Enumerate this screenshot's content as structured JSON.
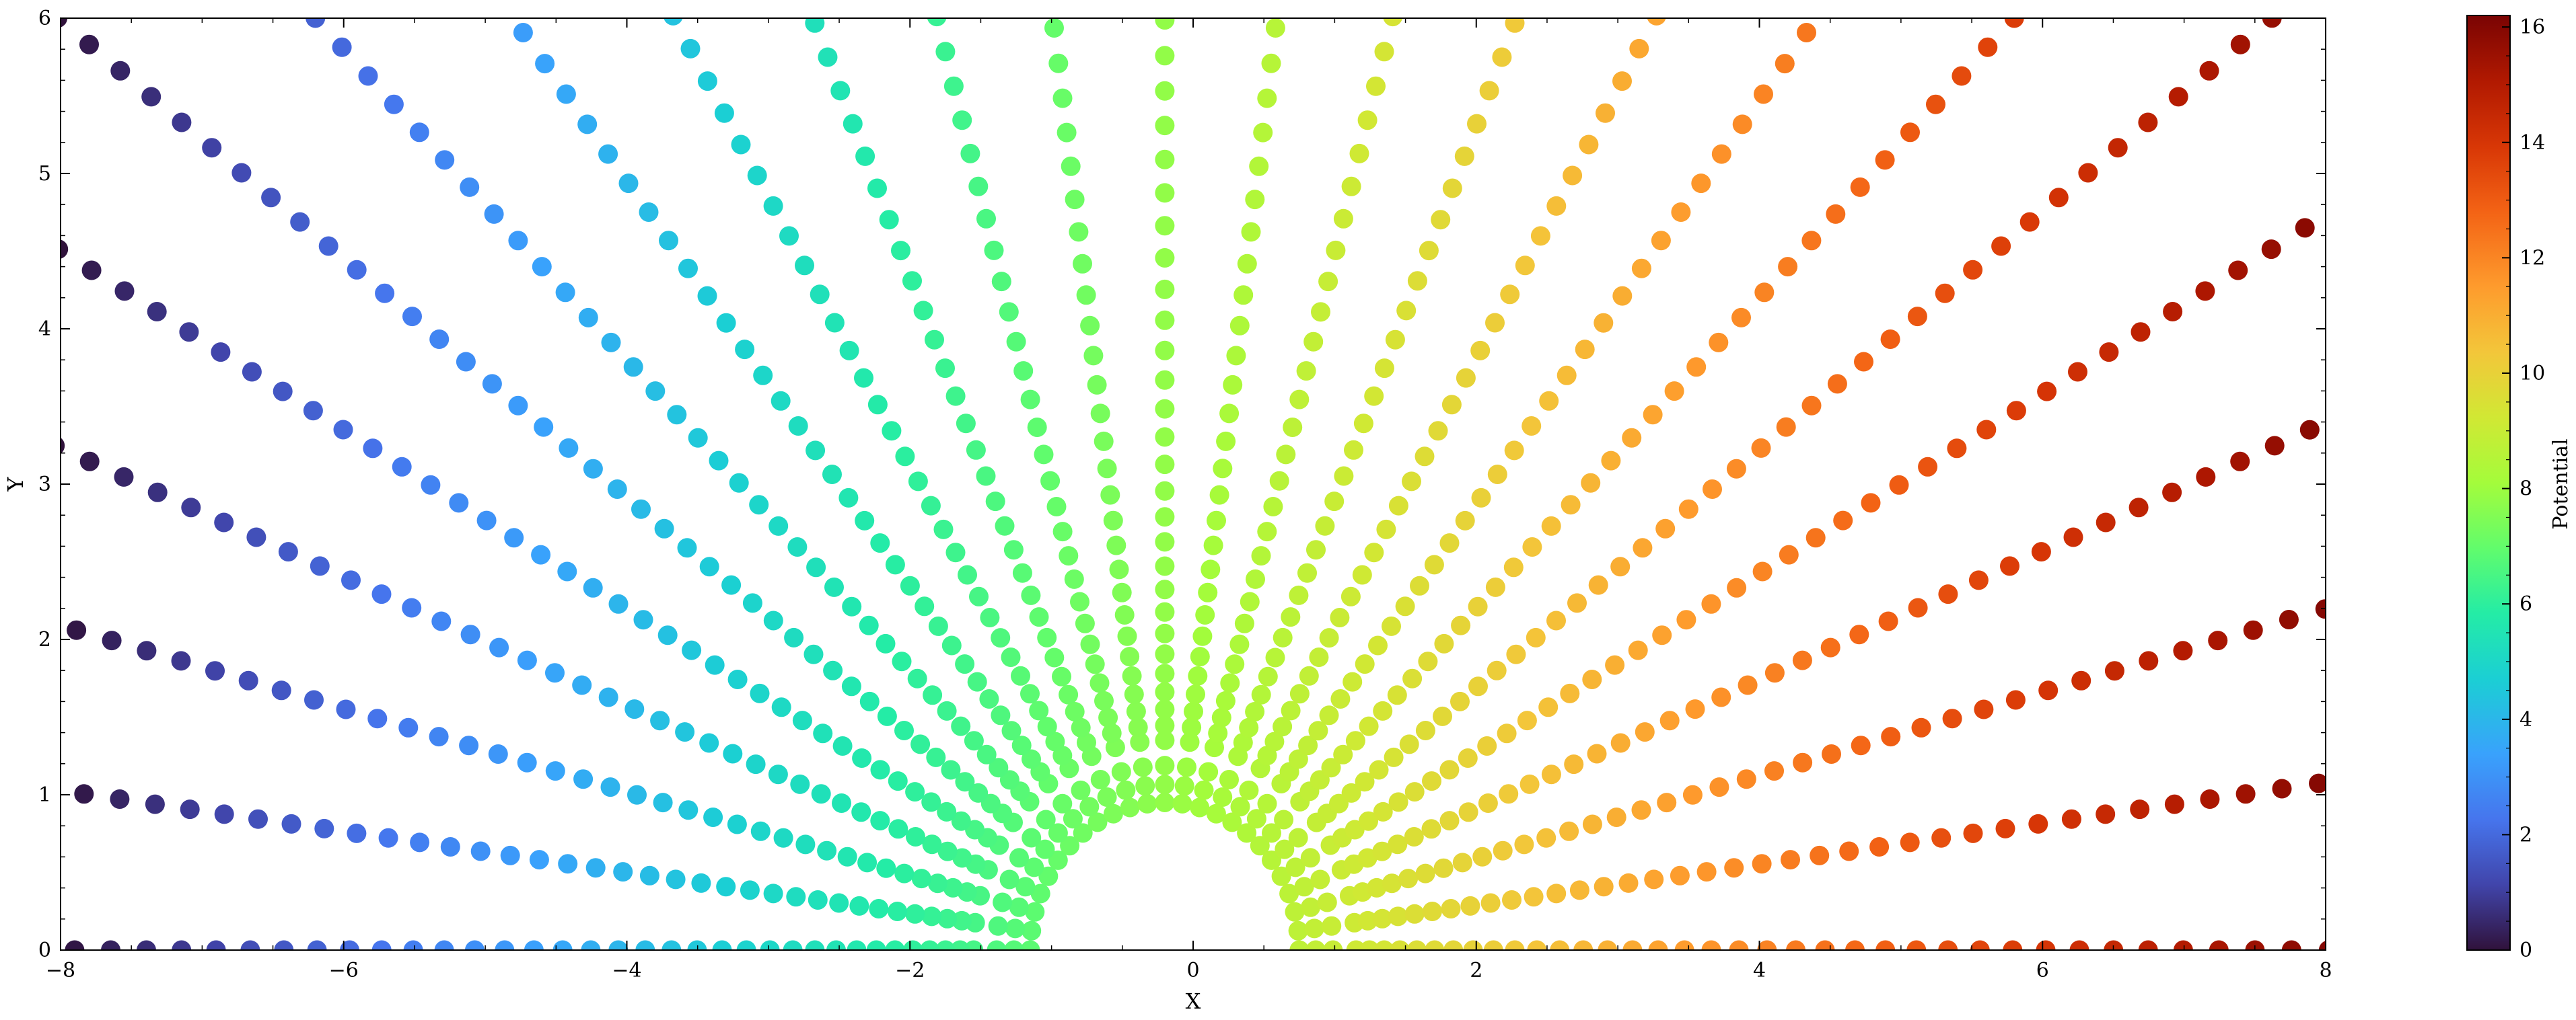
{
  "chart_data": {
    "type": "scatter",
    "title": "",
    "xlabel": "X",
    "ylabel": "Y",
    "xlim": [
      -8,
      8
    ],
    "ylim": [
      0,
      6
    ],
    "x_ticks": [
      -8,
      -6,
      -4,
      -2,
      0,
      2,
      4,
      6,
      8
    ],
    "x_tick_labels": [
      "−8",
      "−6",
      "−4",
      "−2",
      "0",
      "2",
      "4",
      "6",
      "8"
    ],
    "y_ticks": [
      0,
      1,
      2,
      3,
      4,
      5,
      6
    ],
    "y_tick_labels": [
      "0",
      "1",
      "2",
      "3",
      "4",
      "5",
      "6"
    ],
    "grid": false,
    "colorbar": {
      "label": "Potential",
      "range": [
        0,
        16.2
      ],
      "ticks": [
        0,
        2,
        4,
        6,
        8,
        10,
        12,
        14,
        16
      ],
      "tick_labels": [
        "0",
        "2",
        "4",
        "6",
        "8",
        "10",
        "12",
        "14",
        "16"
      ],
      "colormap": "turbo"
    },
    "obstacle": {
      "shape": "semicircle",
      "center_x": -0.2,
      "center_y": 0,
      "radius": 0.45
    },
    "field": {
      "description_values": "uniform flow past a half-cylinder; point color = potential = x + 8",
      "streamlines": 25,
      "angles_deg_start": 180,
      "angles_deg_end": 0,
      "potential_min": 0,
      "potential_max": 16
    }
  }
}
